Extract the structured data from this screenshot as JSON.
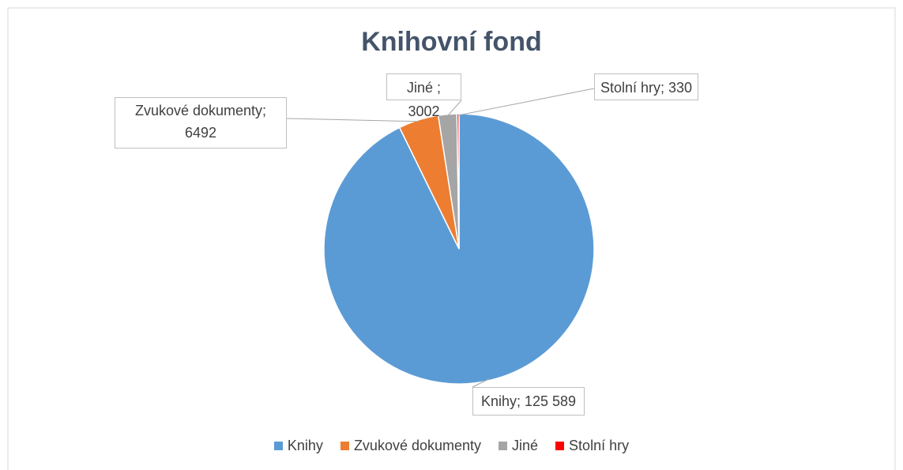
{
  "chart_data": {
    "type": "pie",
    "title": "Knihovní fond",
    "categories": [
      "Knihy",
      "Zvukové dokumenty",
      "Jiné",
      "Stolní hry"
    ],
    "values": [
      125589,
      6492,
      3002,
      330
    ],
    "value_labels": [
      "Knihy; 125 589",
      "Zvukové dokumenty; 6492",
      "Jiné ; 3002",
      "Stolní hry; 330"
    ],
    "colors": [
      "#5b9bd5",
      "#ed7d31",
      "#a5a5a5",
      "#ff0000"
    ],
    "legend": "bottom"
  }
}
